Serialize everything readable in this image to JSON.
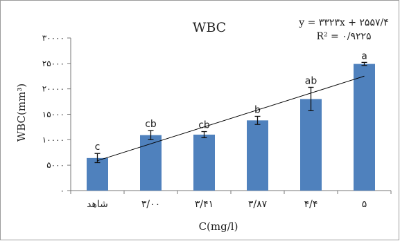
{
  "chart_data": {
    "type": "bar",
    "title": "WBC",
    "xlabel": "C(mg/l)",
    "ylabel": "WBC(mm³)",
    "categories": [
      "شاهد",
      "۳/۰۰",
      "۳/۴۱",
      "۳/۸۷",
      "۴/۴",
      "۵"
    ],
    "values": [
      6400,
      10900,
      11000,
      13800,
      18000,
      24900
    ],
    "error": [
      900,
      900,
      600,
      800,
      2300,
      300
    ],
    "significance_letters": [
      "c",
      "cb",
      "cb",
      "b",
      "ab",
      "a"
    ],
    "ylim": [
      0,
      30000
    ],
    "yticks": [
      {
        "value": 0,
        "label": "۰"
      },
      {
        "value": 5000,
        "label": "۵۰۰۰"
      },
      {
        "value": 10000,
        "label": "۱۰۰۰۰"
      },
      {
        "value": 15000,
        "label": "۱۵۰۰۰"
      },
      {
        "value": 20000,
        "label": "۲۰۰۰۰"
      },
      {
        "value": 25000,
        "label": "۲۵۰۰۰"
      },
      {
        "value": 30000,
        "label": "۳۰۰۰۰"
      }
    ],
    "trendline": {
      "slope": 3323,
      "intercept": 2557.4
    },
    "equation": "y = ۳۳۲۳x + ۲۵۵۷/۴",
    "r_squared": "R² = ۰/۹۲۲۵",
    "bar_color": "#4f81bd",
    "grid": false,
    "legend": "none"
  }
}
